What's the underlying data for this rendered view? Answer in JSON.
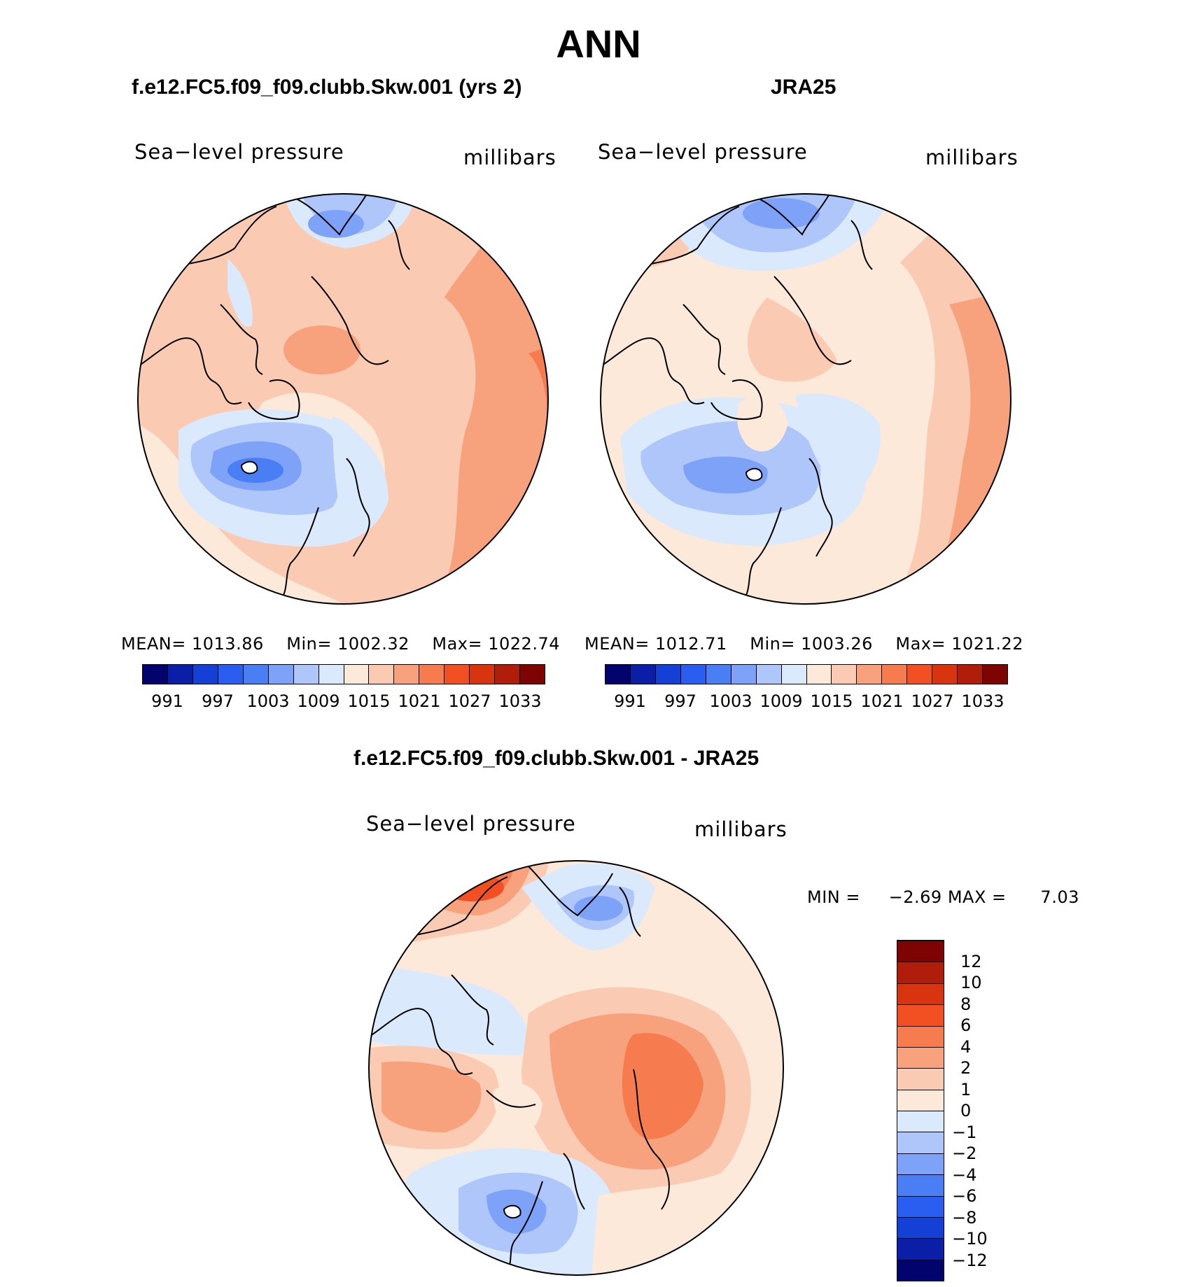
{
  "title": "ANN",
  "panels": [
    {
      "id": "model",
      "title": "f.e12.FC5.f09_f09.clubb.Skw.001 (yrs 2)",
      "variable": "Sea−level pressure",
      "units": "millibars",
      "stats": {
        "mean_label": "MEAN=",
        "mean": "1013.86",
        "min_label": "Min=",
        "min": "1002.32",
        "max_label": "Max=",
        "max": "1022.74"
      }
    },
    {
      "id": "obs",
      "title": "JRA25",
      "variable": "Sea−level pressure",
      "units": "millibars",
      "stats": {
        "mean_label": "MEAN=",
        "mean": "1012.71",
        "min_label": "Min=",
        "min": "1003.26",
        "max_label": "Max=",
        "max": "1021.22"
      }
    },
    {
      "id": "diff",
      "title": "f.e12.FC5.f09_f09.clubb.Skw.001 - JRA25",
      "variable": "Sea−level pressure",
      "units": "millibars",
      "stats": {
        "min_label": "MIN =",
        "min": "−2.69",
        "max_label": "MAX =",
        "max": "7.03"
      }
    }
  ],
  "colorbar_abs": {
    "colors": [
      "#03036e",
      "#0a1ea8",
      "#1440d6",
      "#2a5ef0",
      "#4a7ef5",
      "#7ea2f7",
      "#aec6fa",
      "#dae9fb",
      "#fde9d9",
      "#fbcab3",
      "#f8a27d",
      "#f67c4f",
      "#f24f23",
      "#d83410",
      "#b01e0b",
      "#7e0404"
    ],
    "tick_labels": [
      "991",
      "997",
      "1003",
      "1009",
      "1015",
      "1021",
      "1027",
      "1033"
    ]
  },
  "colorbar_diff": {
    "colors": [
      "#03036e",
      "#0a1ea8",
      "#1440d6",
      "#2a5ef0",
      "#4a7ef5",
      "#7ea2f7",
      "#aec6fa",
      "#dae9fb",
      "#fde9d9",
      "#fbcab3",
      "#f8a27d",
      "#f67c4f",
      "#f24f23",
      "#d83410",
      "#b01e0b",
      "#7e0404"
    ],
    "tick_labels": [
      "−12",
      "−10",
      "−8",
      "−6",
      "−4",
      "−2",
      "−1",
      "0",
      "1",
      "2",
      "4",
      "6",
      "8",
      "10",
      "12"
    ]
  }
}
